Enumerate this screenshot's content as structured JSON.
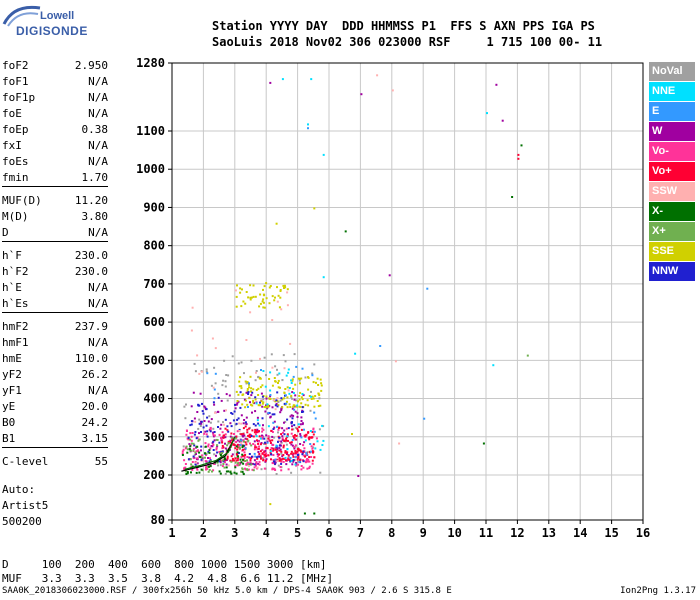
{
  "logo": {
    "line1": "Lowell",
    "line2": "DIGISONDE"
  },
  "header": {
    "line1": "Station YYYY DAY  DDD HHMMSS P1  FFS S AXN PPS IGA PS",
    "line2": "SaoLuis 2018 Nov02 306 023000 RSF     1 715 100 00- 11"
  },
  "params": [
    {
      "group": [
        {
          "name": "foF2",
          "value": "2.950"
        },
        {
          "name": "foF1",
          "value": "N/A"
        },
        {
          "name": "foF1p",
          "value": "N/A"
        },
        {
          "name": "foE",
          "value": "N/A"
        },
        {
          "name": "foEp",
          "value": "0.38"
        },
        {
          "name": "fxI",
          "value": "N/A"
        },
        {
          "name": "foEs",
          "value": "N/A"
        },
        {
          "name": "fmin",
          "value": "1.70"
        }
      ]
    },
    {
      "group": [
        {
          "name": "MUF(D)",
          "value": "11.20"
        },
        {
          "name": "M(D)",
          "value": "3.80"
        },
        {
          "name": "D",
          "value": "N/A"
        }
      ]
    },
    {
      "group": [
        {
          "name": "h`F",
          "value": "230.0"
        },
        {
          "name": "h`F2",
          "value": "230.0"
        },
        {
          "name": "h`E",
          "value": "N/A"
        },
        {
          "name": "h`Es",
          "value": "N/A"
        }
      ]
    },
    {
      "group": [
        {
          "name": "hmF2",
          "value": "237.9"
        },
        {
          "name": "hmF1",
          "value": "N/A"
        },
        {
          "name": "hmE",
          "value": "110.0"
        },
        {
          "name": "yF2",
          "value": "26.2"
        },
        {
          "name": "yF1",
          "value": "N/A"
        },
        {
          "name": "yE",
          "value": "20.0"
        },
        {
          "name": "B0",
          "value": "24.2"
        },
        {
          "name": "B1",
          "value": "3.15"
        }
      ]
    },
    {
      "group": [
        {
          "name": "C-level",
          "value": "55"
        }
      ]
    }
  ],
  "auto": {
    "line1": "Auto:",
    "line2": "Artist5",
    "line3": "500200"
  },
  "legend": [
    {
      "label": "NoVal",
      "color": "#a0a0a0"
    },
    {
      "label": "NNE",
      "color": "#00e0ff"
    },
    {
      "label": "E",
      "color": "#3399ff"
    },
    {
      "label": "W",
      "color": "#a000a0"
    },
    {
      "label": "Vo-",
      "color": "#ff3399"
    },
    {
      "label": "Vo+",
      "color": "#ff0033"
    },
    {
      "label": "SSW",
      "color": "#ffb0b0"
    },
    {
      "label": "X-",
      "color": "#007000"
    },
    {
      "label": "X+",
      "color": "#70b050"
    },
    {
      "label": "SSE",
      "color": "#d0d000"
    },
    {
      "label": "NNW",
      "color": "#2020d0"
    }
  ],
  "chart_data": {
    "type": "scatter",
    "title": "",
    "xlabel": "",
    "ylabel": "",
    "xlim": [
      1,
      16
    ],
    "ylim": [
      80,
      1280
    ],
    "x_ticks": [
      1,
      2,
      3,
      4,
      5,
      6,
      7,
      8,
      9,
      10,
      11,
      12,
      13,
      14,
      15,
      16
    ],
    "y_ticks": [
      80,
      200,
      300,
      400,
      500,
      600,
      700,
      800,
      900,
      1000,
      1100,
      1280
    ],
    "grid": true,
    "legend_position": "right",
    "clusters": [
      {
        "name": "NoVal",
        "x_range": [
          1.3,
          5.8
        ],
        "y_range": [
          205,
          520
        ],
        "count": 130
      },
      {
        "name": "W",
        "x_range": [
          1.5,
          5.2
        ],
        "y_range": [
          230,
          420
        ],
        "count": 220
      },
      {
        "name": "Vo-",
        "x_range": [
          1.3,
          5.6
        ],
        "y_range": [
          215,
          330
        ],
        "count": 220
      },
      {
        "name": "Vo+",
        "x_range": [
          2.5,
          5.5
        ],
        "y_range": [
          240,
          330
        ],
        "count": 200
      },
      {
        "name": "SSE",
        "x_range": [
          3.0,
          5.8
        ],
        "y_range": [
          380,
          460
        ],
        "count": 130
      },
      {
        "name": "SSE",
        "x_range": [
          3.0,
          4.7
        ],
        "y_range": [
          640,
          710
        ],
        "count": 50
      },
      {
        "name": "NNW",
        "x_range": [
          1.5,
          5.2
        ],
        "y_range": [
          230,
          420
        ],
        "count": 120
      },
      {
        "name": "X+",
        "x_range": [
          1.4,
          3.6
        ],
        "y_range": [
          210,
          300
        ],
        "count": 60
      },
      {
        "name": "X-",
        "x_range": [
          1.3,
          3.3
        ],
        "y_range": [
          205,
          280
        ],
        "count": 50
      },
      {
        "name": "NNE",
        "x_range": [
          3.5,
          5.8
        ],
        "y_range": [
          230,
          480
        ],
        "count": 40
      },
      {
        "name": "E",
        "x_range": [
          2.0,
          5.6
        ],
        "y_range": [
          230,
          520
        ],
        "count": 40
      },
      {
        "name": "SSW",
        "x_range": [
          1.5,
          4.8
        ],
        "y_range": [
          200,
          700
        ],
        "count": 40
      }
    ],
    "scattered_points": [
      {
        "x": 4.1,
        "y": 1230,
        "color": "W"
      },
      {
        "x": 4.5,
        "y": 1240,
        "color": "NNE"
      },
      {
        "x": 5.4,
        "y": 1240,
        "color": "NNE"
      },
      {
        "x": 7.0,
        "y": 1200,
        "color": "W"
      },
      {
        "x": 5.3,
        "y": 1120,
        "color": "NNE"
      },
      {
        "x": 5.3,
        "y": 1110,
        "color": "E"
      },
      {
        "x": 5.8,
        "y": 1040,
        "color": "NNE"
      },
      {
        "x": 11.0,
        "y": 1150,
        "color": "NNE"
      },
      {
        "x": 11.3,
        "y": 1225,
        "color": "W"
      },
      {
        "x": 11.5,
        "y": 1130,
        "color": "W"
      },
      {
        "x": 12.0,
        "y": 1040,
        "color": "Vo+"
      },
      {
        "x": 12.0,
        "y": 1030,
        "color": "Vo+"
      },
      {
        "x": 12.1,
        "y": 1065,
        "color": "X-"
      },
      {
        "x": 11.8,
        "y": 930,
        "color": "X-"
      },
      {
        "x": 6.5,
        "y": 840,
        "color": "X-"
      },
      {
        "x": 7.9,
        "y": 725,
        "color": "W"
      },
      {
        "x": 9.1,
        "y": 690,
        "color": "E"
      },
      {
        "x": 5.8,
        "y": 720,
        "color": "NNE"
      },
      {
        "x": 6.8,
        "y": 520,
        "color": "NNE"
      },
      {
        "x": 7.6,
        "y": 540,
        "color": "E"
      },
      {
        "x": 8.1,
        "y": 500,
        "color": "SSW"
      },
      {
        "x": 11.2,
        "y": 490,
        "color": "NNE"
      },
      {
        "x": 12.3,
        "y": 515,
        "color": "X+"
      },
      {
        "x": 9.0,
        "y": 350,
        "color": "E"
      },
      {
        "x": 8.2,
        "y": 285,
        "color": "SSW"
      },
      {
        "x": 10.9,
        "y": 285,
        "color": "X-"
      },
      {
        "x": 6.9,
        "y": 200,
        "color": "W"
      },
      {
        "x": 5.2,
        "y": 100,
        "color": "X-"
      },
      {
        "x": 5.5,
        "y": 100,
        "color": "X-"
      },
      {
        "x": 4.1,
        "y": 125,
        "color": "SSE"
      },
      {
        "x": 6.7,
        "y": 310,
        "color": "SSE"
      },
      {
        "x": 7.5,
        "y": 1250,
        "color": "SSW"
      },
      {
        "x": 8.0,
        "y": 1210,
        "color": "SSW"
      },
      {
        "x": 4.3,
        "y": 860,
        "color": "SSE"
      },
      {
        "x": 5.5,
        "y": 900,
        "color": "SSE"
      }
    ],
    "trace_lines": [
      {
        "color": "#000000",
        "points": [
          [
            1.3,
            210
          ],
          [
            1.8,
            220
          ],
          [
            2.3,
            230
          ],
          [
            2.7,
            250
          ],
          [
            2.95,
            290
          ]
        ]
      },
      {
        "color": "#007000",
        "points": [
          [
            1.4,
            215
          ],
          [
            1.9,
            225
          ],
          [
            2.4,
            238
          ],
          [
            2.8,
            260
          ],
          [
            3.0,
            300
          ]
        ]
      }
    ]
  },
  "footer": {
    "d_row": "D     100  200  400  600  800 1000 1500 3000 [km]",
    "muf_row": "MUF   3.3  3.3  3.5  3.8  4.2  4.8  6.6 11.2 [MHz]"
  },
  "bottom": {
    "info": "SAA0K_2018306023000.RSF / 300fx256h 50 kHz 5.0 km / DPS-4 SAA0K 903 / 2.6 S 315.8 E",
    "version": "Ion2Png 1.3.17"
  }
}
